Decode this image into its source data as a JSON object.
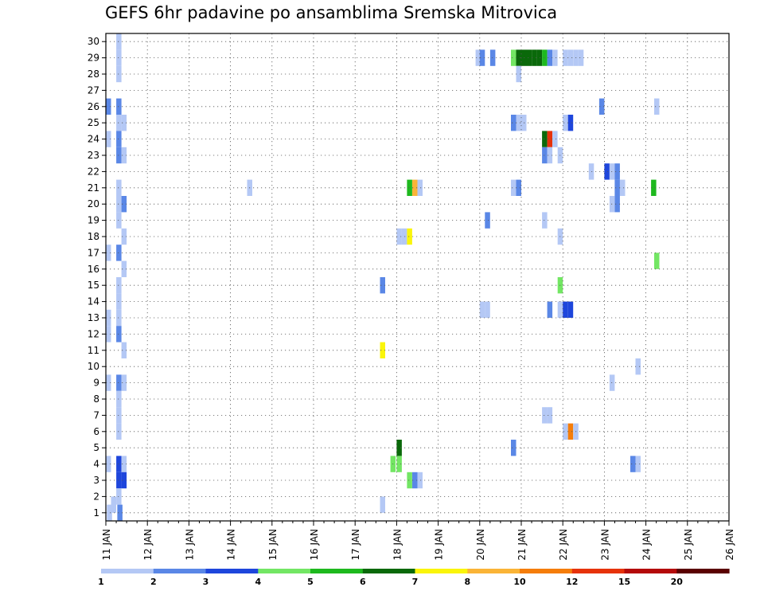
{
  "title": "GEFS 6hr padavine po ansamblima Sremska Mitrovica",
  "chart_data": {
    "type": "heatmap",
    "title": "GEFS 6hr padavine po ansamblima Sremska Mitrovica",
    "xlabel": "",
    "ylabel": "",
    "x_ticks": [
      "11 JAN",
      "12 JAN",
      "13 JAN",
      "14 JAN",
      "15 JAN",
      "16 JAN",
      "17 JAN",
      "18 JAN",
      "19 JAN",
      "20 JAN",
      "21 JAN",
      "22 JAN",
      "23 JAN",
      "24 JAN",
      "25 JAN",
      "26 JAN"
    ],
    "y_ticks": [
      "1",
      "2",
      "3",
      "4",
      "5",
      "6",
      "7",
      "8",
      "9",
      "10",
      "11",
      "12",
      "13",
      "14",
      "15",
      "16",
      "17",
      "18",
      "19",
      "20",
      "21",
      "22",
      "23",
      "24",
      "25",
      "26",
      "27",
      "28",
      "29",
      "30"
    ],
    "xlim": [
      0,
      60
    ],
    "ylim": [
      0.5,
      30.5
    ],
    "x_unit": "6-hour step from 11 JAN 00Z",
    "grid": true,
    "colorbar": {
      "levels": [
        "1",
        "2",
        "3",
        "4",
        "5",
        "6",
        "7",
        "8",
        "10",
        "12",
        "15",
        "20"
      ],
      "colors": [
        "#b4c8f5",
        "#5a87e6",
        "#1e46dc",
        "#73e664",
        "#1eb91e",
        "#0a690a",
        "#faf50a",
        "#fab437",
        "#f57d0a",
        "#e6320a",
        "#b40a0a",
        "#5a0000"
      ]
    },
    "cells": [
      {
        "x": 0.1,
        "y": 1,
        "c": 0
      },
      {
        "x": 1.1,
        "y": 1,
        "c": 1
      },
      {
        "x": 0.5,
        "y": 1.5,
        "c": 0
      },
      {
        "x": 1,
        "y": 30,
        "c": 0
      },
      {
        "x": 1,
        "y": 29,
        "c": 0
      },
      {
        "x": 1,
        "y": 28,
        "c": 0
      },
      {
        "x": 0,
        "y": 26,
        "c": 1
      },
      {
        "x": 1,
        "y": 26,
        "c": 1
      },
      {
        "x": 1,
        "y": 25,
        "c": 0
      },
      {
        "x": 1.5,
        "y": 25,
        "c": 0
      },
      {
        "x": 1,
        "y": 24,
        "c": 1
      },
      {
        "x": 0,
        "y": 24,
        "c": 0
      },
      {
        "x": 1,
        "y": 23,
        "c": 1
      },
      {
        "x": 1.5,
        "y": 23,
        "c": 0
      },
      {
        "x": 1,
        "y": 21,
        "c": 0
      },
      {
        "x": 1,
        "y": 20,
        "c": 0
      },
      {
        "x": 1.5,
        "y": 20,
        "c": 1
      },
      {
        "x": 1,
        "y": 19,
        "c": 0
      },
      {
        "x": 1.5,
        "y": 18,
        "c": 0
      },
      {
        "x": 0,
        "y": 17,
        "c": 0
      },
      {
        "x": 1,
        "y": 17,
        "c": 1
      },
      {
        "x": 1.5,
        "y": 16,
        "c": 0
      },
      {
        "x": 1,
        "y": 15,
        "c": 0
      },
      {
        "x": 1,
        "y": 14,
        "c": 0
      },
      {
        "x": 0,
        "y": 13,
        "c": 0
      },
      {
        "x": 1,
        "y": 13,
        "c": 0
      },
      {
        "x": 1,
        "y": 12,
        "c": 1
      },
      {
        "x": 0,
        "y": 12,
        "c": 0
      },
      {
        "x": 1.5,
        "y": 11,
        "c": 0
      },
      {
        "x": 0,
        "y": 9,
        "c": 0
      },
      {
        "x": 1,
        "y": 9,
        "c": 1
      },
      {
        "x": 1.5,
        "y": 9,
        "c": 0
      },
      {
        "x": 1,
        "y": 8,
        "c": 0
      },
      {
        "x": 1,
        "y": 7,
        "c": 0
      },
      {
        "x": 1,
        "y": 6,
        "c": 0
      },
      {
        "x": 1,
        "y": 4,
        "c": 2
      },
      {
        "x": 0,
        "y": 4,
        "c": 0
      },
      {
        "x": 1.5,
        "y": 4,
        "c": 0
      },
      {
        "x": 1,
        "y": 3,
        "c": 2
      },
      {
        "x": 1.5,
        "y": 3,
        "c": 2
      },
      {
        "x": 1,
        "y": 2,
        "c": 0
      },
      {
        "x": 13.6,
        "y": 21,
        "c": 0
      },
      {
        "x": 26.4,
        "y": 15,
        "c": 1
      },
      {
        "x": 26.4,
        "y": 11,
        "c": 6
      },
      {
        "x": 26.4,
        "y": 1.5,
        "c": 0
      },
      {
        "x": 27.4,
        "y": 4,
        "c": 3
      },
      {
        "x": 28,
        "y": 4,
        "c": 3
      },
      {
        "x": 28,
        "y": 5,
        "c": 5
      },
      {
        "x": 28,
        "y": 18,
        "c": 0
      },
      {
        "x": 28.5,
        "y": 18,
        "c": 0
      },
      {
        "x": 29,
        "y": 18,
        "c": 6
      },
      {
        "x": 29,
        "y": 21,
        "c": 4
      },
      {
        "x": 29.5,
        "y": 21,
        "c": 7
      },
      {
        "x": 30,
        "y": 21,
        "c": 0
      },
      {
        "x": 29,
        "y": 3,
        "c": 3
      },
      {
        "x": 29.5,
        "y": 3,
        "c": 1
      },
      {
        "x": 30,
        "y": 3,
        "c": 0
      },
      {
        "x": 35.6,
        "y": 29,
        "c": 0
      },
      {
        "x": 36,
        "y": 29,
        "c": 1
      },
      {
        "x": 37,
        "y": 29,
        "c": 1
      },
      {
        "x": 36.5,
        "y": 19,
        "c": 1
      },
      {
        "x": 36,
        "y": 13.5,
        "c": 0
      },
      {
        "x": 36.5,
        "y": 13.5,
        "c": 0
      },
      {
        "x": 39,
        "y": 29,
        "c": 3
      },
      {
        "x": 39.5,
        "y": 29,
        "c": 5
      },
      {
        "x": 40,
        "y": 29,
        "c": 5
      },
      {
        "x": 40.5,
        "y": 29,
        "c": 5
      },
      {
        "x": 41,
        "y": 29,
        "c": 5
      },
      {
        "x": 41.5,
        "y": 29,
        "c": 5
      },
      {
        "x": 42,
        "y": 29,
        "c": 4
      },
      {
        "x": 42.5,
        "y": 29,
        "c": 1
      },
      {
        "x": 43,
        "y": 29,
        "c": 0
      },
      {
        "x": 44,
        "y": 29,
        "c": 0
      },
      {
        "x": 44.5,
        "y": 29,
        "c": 0
      },
      {
        "x": 45,
        "y": 29,
        "c": 0
      },
      {
        "x": 45.5,
        "y": 29,
        "c": 0
      },
      {
        "x": 39.5,
        "y": 28,
        "c": 0
      },
      {
        "x": 39,
        "y": 25,
        "c": 1
      },
      {
        "x": 39.5,
        "y": 25,
        "c": 0
      },
      {
        "x": 40,
        "y": 25,
        "c": 0
      },
      {
        "x": 39,
        "y": 21,
        "c": 0
      },
      {
        "x": 39.5,
        "y": 21,
        "c": 1
      },
      {
        "x": 39,
        "y": 5,
        "c": 1
      },
      {
        "x": 42,
        "y": 24,
        "c": 5
      },
      {
        "x": 42.5,
        "y": 24,
        "c": 9
      },
      {
        "x": 43,
        "y": 24,
        "c": 0
      },
      {
        "x": 42,
        "y": 23,
        "c": 1
      },
      {
        "x": 42.5,
        "y": 23,
        "c": 0
      },
      {
        "x": 43.5,
        "y": 23,
        "c": 0
      },
      {
        "x": 42,
        "y": 19,
        "c": 0
      },
      {
        "x": 43.5,
        "y": 18,
        "c": 0
      },
      {
        "x": 43.5,
        "y": 15,
        "c": 3
      },
      {
        "x": 42.5,
        "y": 13.5,
        "c": 1
      },
      {
        "x": 43.5,
        "y": 13.5,
        "c": 0
      },
      {
        "x": 44,
        "y": 13.5,
        "c": 2
      },
      {
        "x": 44.5,
        "y": 13.5,
        "c": 2
      },
      {
        "x": 42,
        "y": 7,
        "c": 0
      },
      {
        "x": 42.5,
        "y": 7,
        "c": 0
      },
      {
        "x": 44,
        "y": 6,
        "c": 0
      },
      {
        "x": 44.5,
        "y": 6,
        "c": 8
      },
      {
        "x": 45,
        "y": 6,
        "c": 0
      },
      {
        "x": 44,
        "y": 25,
        "c": 0
      },
      {
        "x": 44.5,
        "y": 25,
        "c": 2
      },
      {
        "x": 46.5,
        "y": 22,
        "c": 0
      },
      {
        "x": 47.5,
        "y": 26,
        "c": 1
      },
      {
        "x": 48,
        "y": 22,
        "c": 2
      },
      {
        "x": 48.5,
        "y": 22,
        "c": 0
      },
      {
        "x": 49,
        "y": 22,
        "c": 1
      },
      {
        "x": 49,
        "y": 21,
        "c": 1
      },
      {
        "x": 49,
        "y": 20,
        "c": 1
      },
      {
        "x": 49.5,
        "y": 21,
        "c": 0
      },
      {
        "x": 48.5,
        "y": 20,
        "c": 0
      },
      {
        "x": 48.5,
        "y": 9,
        "c": 0
      },
      {
        "x": 50.5,
        "y": 4,
        "c": 1
      },
      {
        "x": 51,
        "y": 4,
        "c": 0
      },
      {
        "x": 51,
        "y": 10,
        "c": 0
      },
      {
        "x": 52.5,
        "y": 21,
        "c": 4
      },
      {
        "x": 52.8,
        "y": 16.5,
        "c": 3
      },
      {
        "x": 52.8,
        "y": 26,
        "c": 0
      }
    ]
  }
}
